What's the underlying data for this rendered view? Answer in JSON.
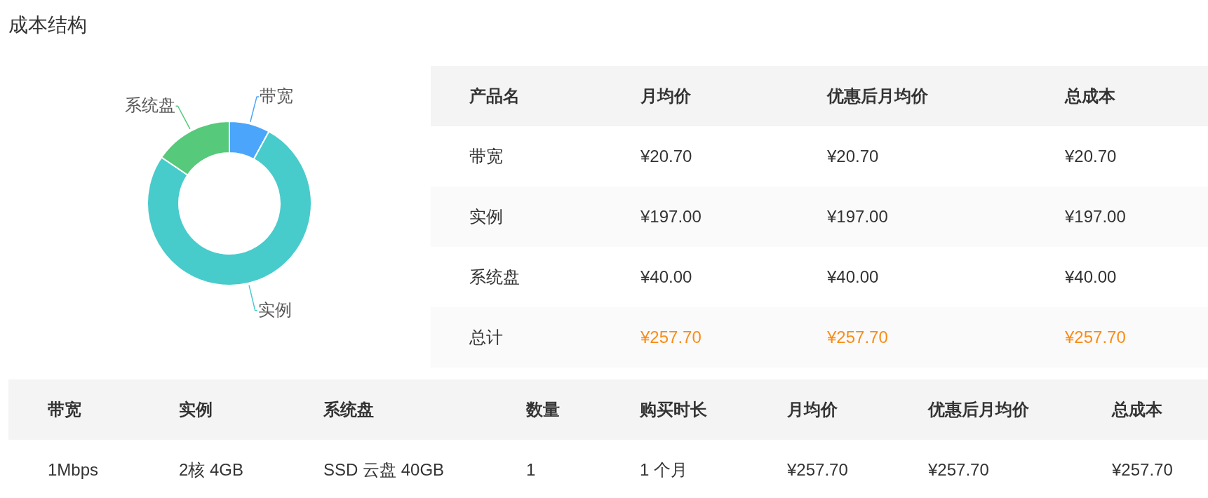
{
  "chart_data": [
    {
      "type": "donut",
      "title": "成本结构",
      "categories": [
        "带宽",
        "实例",
        "系统盘"
      ],
      "values": [
        8,
        76.5,
        15.5
      ],
      "colors": [
        "#4aa5fb",
        "#48cbcb",
        "#56c97a"
      ]
    },
    {
      "type": "other",
      "categories": [
        "产品名",
        "月均价",
        "优惠后月均价",
        "总成本"
      ],
      "annotations": [
        "带宽",
        "¥20.70",
        "¥20.70",
        "¥20.70",
        "实例",
        "¥197.00",
        "¥197.00",
        "¥197.00",
        "系统盘",
        "¥40.00",
        "¥40.00",
        "¥40.00",
        "总计"
      ],
      "totals": [
        "¥257.70",
        "¥257.70",
        "¥257.70"
      ]
    },
    {
      "type": "other",
      "categories": [
        "带宽",
        "实例",
        "系统盘",
        "数量",
        "购买时长",
        "月均价",
        "优惠后月均价",
        "总成本"
      ],
      "annotations": [
        "1Mbps",
        "2核 4GB",
        "SSD 云盘 40GB",
        "1",
        "1 个月",
        "¥257.70",
        "¥257.70",
        "¥257.70"
      ]
    }
  ]
}
